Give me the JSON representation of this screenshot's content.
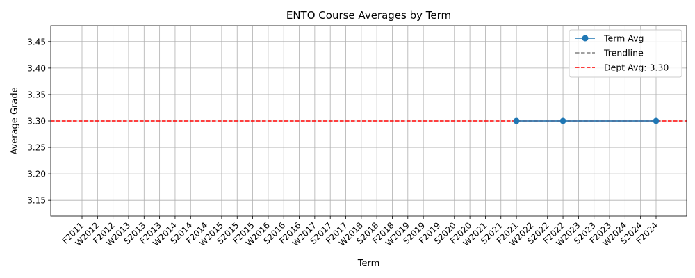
{
  "chart_data": {
    "type": "line",
    "title": "ENTO Course Averages by Term",
    "xlabel": "Term",
    "ylabel": "Average Grade",
    "categories": [
      "F2011",
      "W2012",
      "F2012",
      "W2013",
      "S2013",
      "F2013",
      "W2014",
      "S2014",
      "F2014",
      "W2015",
      "S2015",
      "F2015",
      "W2016",
      "S2016",
      "F2016",
      "W2017",
      "S2017",
      "F2017",
      "W2018",
      "S2018",
      "F2018",
      "W2019",
      "S2019",
      "F2019",
      "S2020",
      "F2020",
      "W2021",
      "S2021",
      "F2021",
      "W2022",
      "S2022",
      "F2022",
      "W2023",
      "S2023",
      "F2023",
      "W2024",
      "S2024",
      "F2024"
    ],
    "ylim": [
      3.12,
      3.48
    ],
    "yticks": [
      3.15,
      3.2,
      3.25,
      3.3,
      3.35,
      3.4,
      3.45
    ],
    "ytick_labels": [
      "3.15",
      "3.20",
      "3.25",
      "3.30",
      "3.35",
      "3.40",
      "3.45"
    ],
    "grid": true,
    "legend_position": "top-right",
    "series": [
      {
        "name": "Term Avg",
        "kind": "line-marker",
        "color": "#1f77b4",
        "points": [
          {
            "x": "F2021",
            "y": 3.3
          },
          {
            "x": "F2022",
            "y": 3.3
          },
          {
            "x": "F2024",
            "y": 3.3
          }
        ]
      },
      {
        "name": "Trendline",
        "kind": "dashed",
        "color": "#808080",
        "value": 3.3
      },
      {
        "name": "Dept Avg: 3.30",
        "kind": "hline-dashed",
        "color": "#ff0000",
        "value": 3.3
      }
    ]
  }
}
